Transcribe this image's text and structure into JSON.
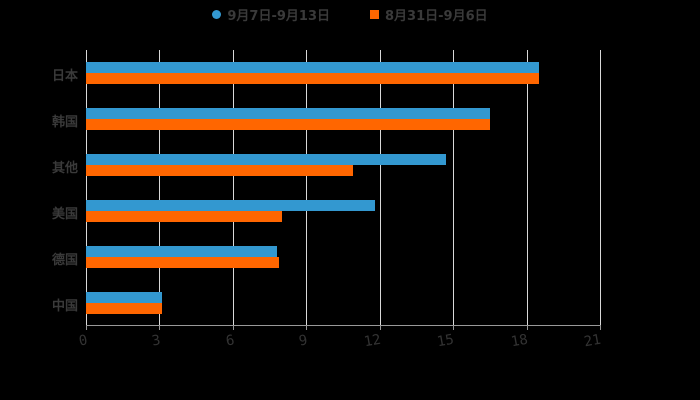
{
  "legend": [
    {
      "label": "9月7日-9月13日",
      "color": "#3398d0",
      "shape": "circle"
    },
    {
      "label": "8月31日-9月6日",
      "color": "#ff6600",
      "shape": "square"
    }
  ],
  "chart_data": {
    "type": "bar",
    "orientation": "horizontal",
    "title": "",
    "xlabel": "",
    "ylabel": "",
    "categories": [
      "日本",
      "韩国",
      "其他",
      "美国",
      "德国",
      "中国"
    ],
    "series": [
      {
        "name": "9月7日-9月13日",
        "color": "#3398d0",
        "values": [
          18.5,
          16.5,
          14.7,
          11.8,
          7.8,
          3.1
        ]
      },
      {
        "name": "8月31日-9月6日",
        "color": "#ff6600",
        "values": [
          18.5,
          16.5,
          10.9,
          8.0,
          7.9,
          3.1
        ]
      }
    ],
    "xlim": [
      0,
      21
    ],
    "xticks": [
      0,
      3,
      6,
      9,
      12,
      15,
      18,
      21
    ],
    "grid": true,
    "legend_position": "top"
  }
}
